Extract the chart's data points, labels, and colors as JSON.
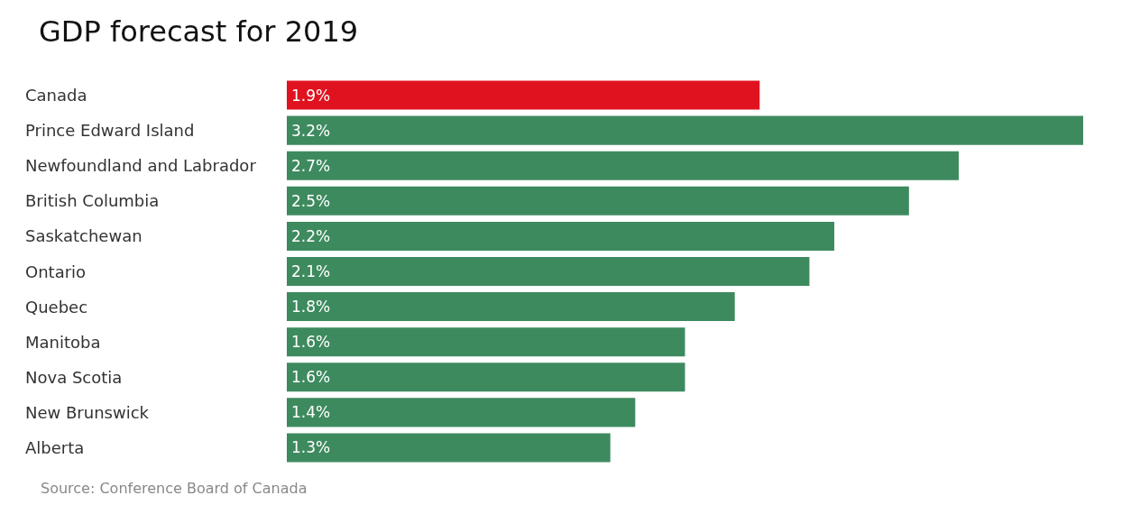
{
  "chart_data": {
    "type": "bar",
    "orientation": "horizontal",
    "title": "GDP forecast for 2019",
    "categories": [
      "Canada",
      "Prince Edward Island",
      "Newfoundland and Labrador",
      "British Columbia",
      "Saskatchewan",
      "Ontario",
      "Quebec",
      "Manitoba",
      "Nova Scotia",
      "New Brunswick",
      "Alberta"
    ],
    "values": [
      1.9,
      3.2,
      2.7,
      2.5,
      2.2,
      2.1,
      1.8,
      1.6,
      1.6,
      1.4,
      1.3
    ],
    "value_labels": [
      "1.9%",
      "3.2%",
      "2.7%",
      "2.5%",
      "2.2%",
      "2.1%",
      "1.8%",
      "1.6%",
      "1.6%",
      "1.4%",
      "1.3%"
    ],
    "colors": [
      "#e0121f",
      "#3e8a5f",
      "#3e8a5f",
      "#3e8a5f",
      "#3e8a5f",
      "#3e8a5f",
      "#3e8a5f",
      "#3e8a5f",
      "#3e8a5f",
      "#3e8a5f",
      "#3e8a5f"
    ],
    "annotations": [
      "Source: Conference Board of Canada"
    ]
  }
}
